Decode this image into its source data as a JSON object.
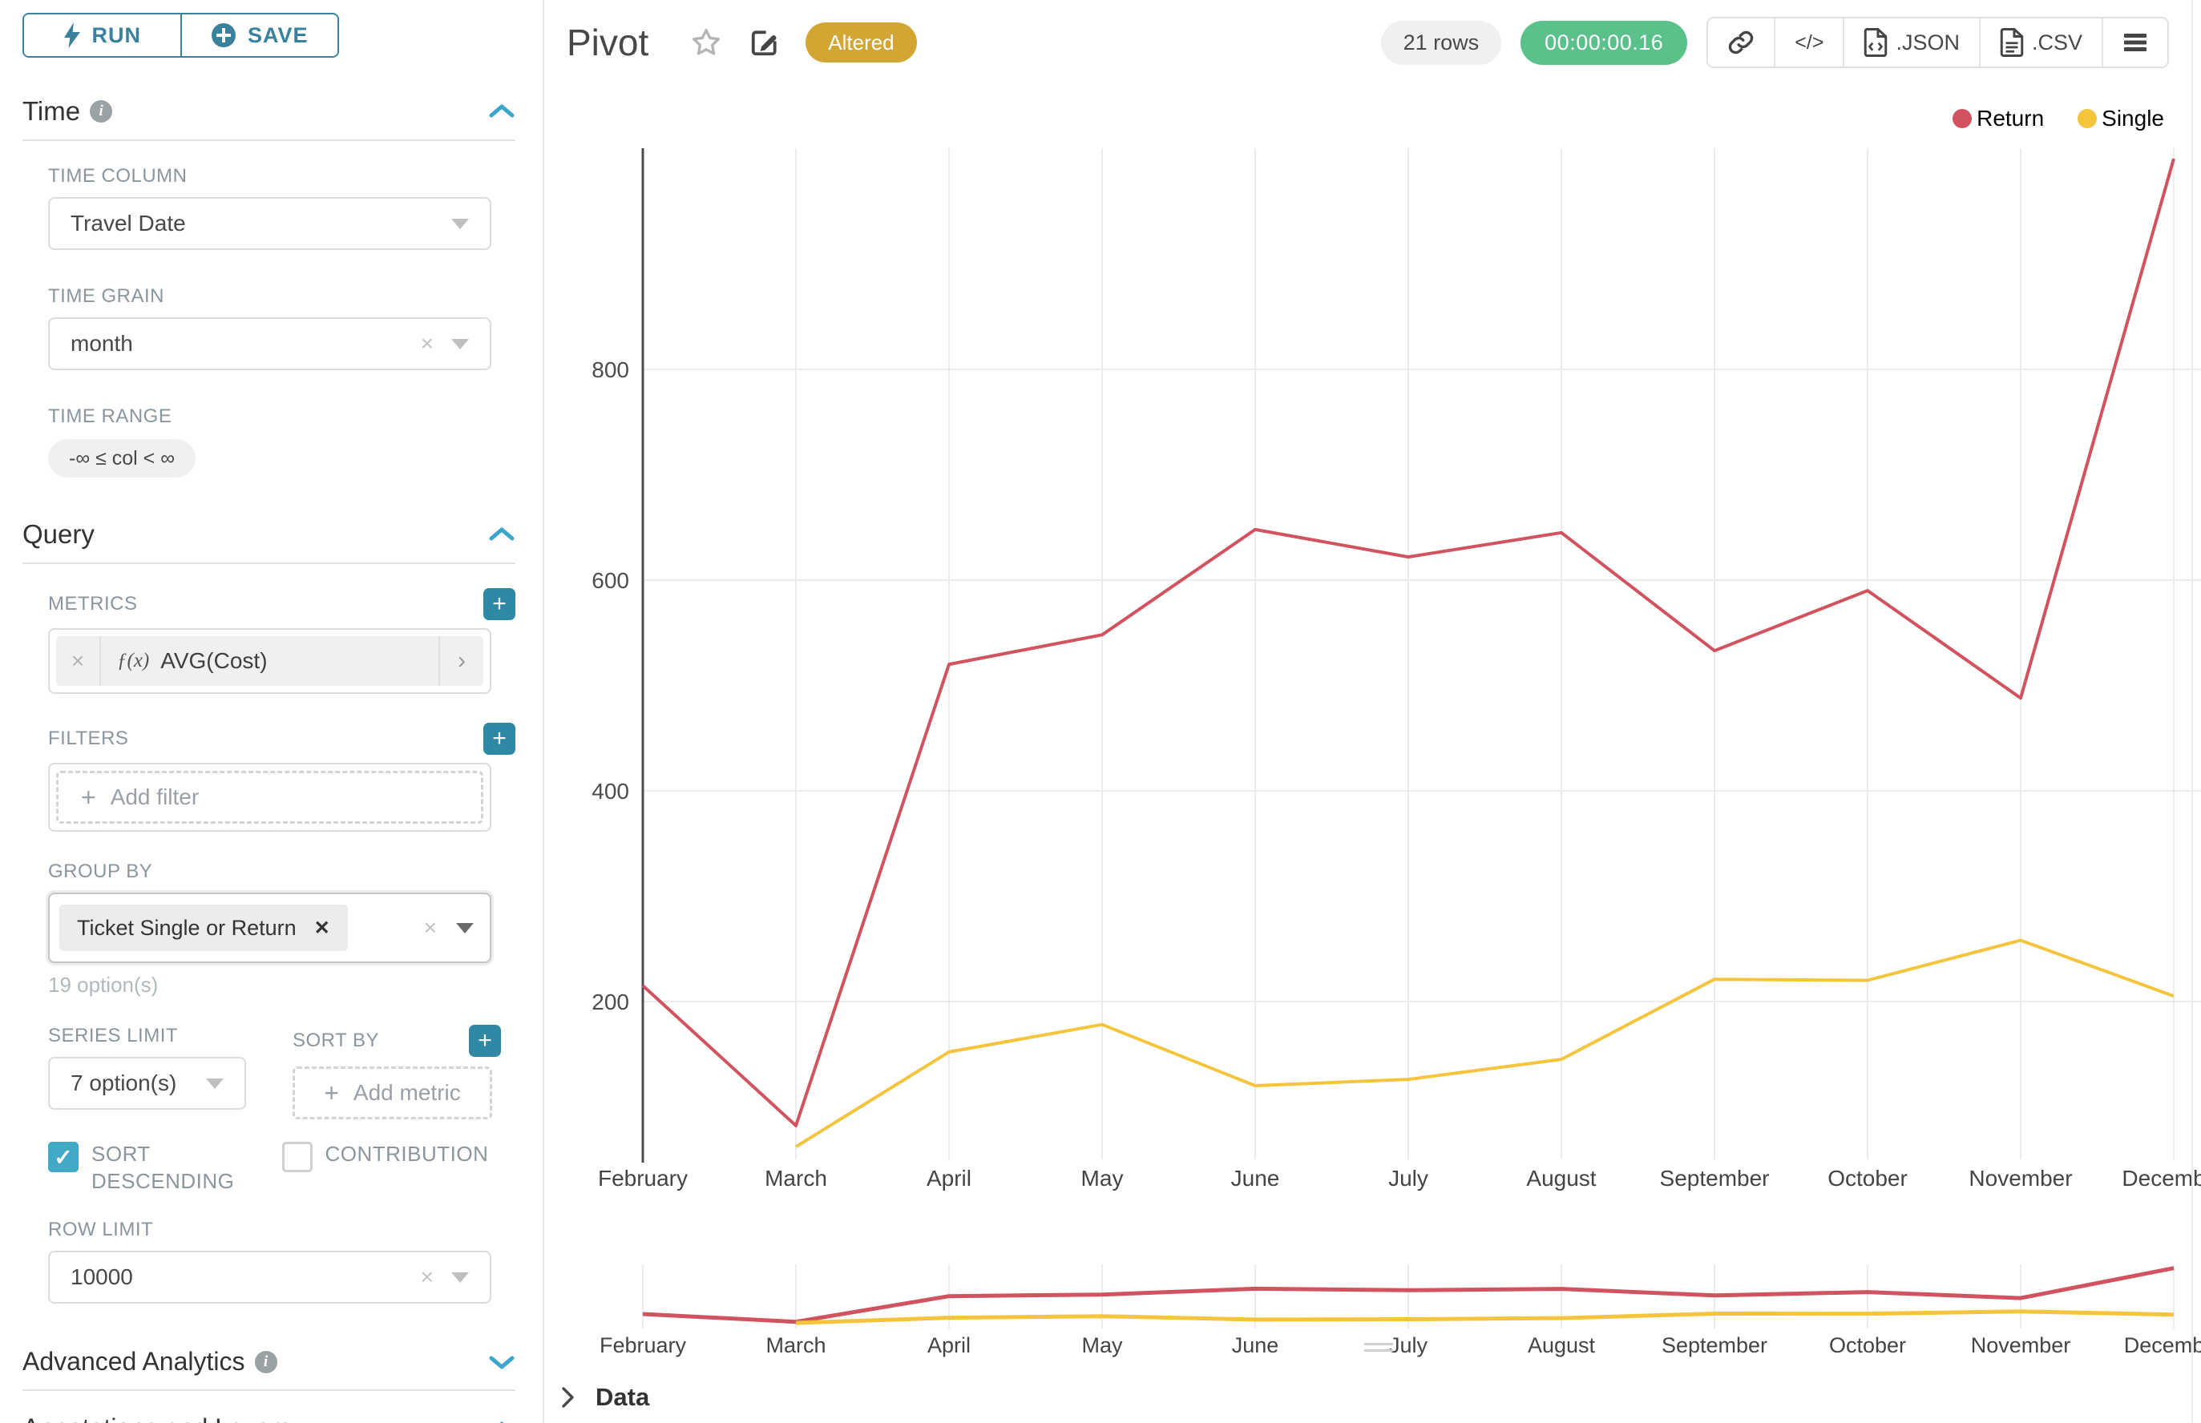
{
  "sidebar": {
    "run_label": "RUN",
    "save_label": "SAVE",
    "time_section": {
      "title": "Time",
      "time_column_label": "TIME COLUMN",
      "time_column_value": "Travel Date",
      "time_grain_label": "TIME GRAIN",
      "time_grain_value": "month",
      "time_range_label": "TIME RANGE",
      "time_range_value": "-∞ ≤ col < ∞"
    },
    "query_section": {
      "title": "Query",
      "metrics_label": "METRICS",
      "metric_fx": "ƒ(x)",
      "metric_value": "AVG(Cost)",
      "filters_label": "FILTERS",
      "add_filter_label": "Add filter",
      "group_by_label": "GROUP BY",
      "group_by_value": "Ticket Single or Return",
      "group_by_hint": "19 option(s)",
      "series_limit_label": "SERIES LIMIT",
      "series_limit_value": "7 option(s)",
      "sort_by_label": "SORT BY",
      "add_metric_label": "Add metric",
      "sort_descending_label": "SORT DESCENDING",
      "contribution_label": "CONTRIBUTION",
      "row_limit_label": "ROW LIMIT",
      "row_limit_value": "10000"
    },
    "advanced_title": "Advanced Analytics",
    "annotations_title": "Annotations and Layers"
  },
  "header": {
    "title": "Pivot",
    "altered_badge": "Altered",
    "rows_badge": "21 rows",
    "timer_badge": "00:00:00.16",
    "json_label": ".JSON",
    "csv_label": ".CSV",
    "code_glyph": "</>"
  },
  "data_panel": {
    "title": "Data"
  },
  "colors": {
    "accent_teal": "#3a819e",
    "plus_button_teal": "#2f89a5",
    "chevron_blue": "#3ba6cc",
    "checkbox_teal": "#41a8c6",
    "timer_green": "#5ac18a",
    "altered_gold": "#d3a634",
    "return_red": "#d0535f",
    "single_yellow": "#f5c43d",
    "gridline": "#ececec",
    "axis_dark": "#4c4c4c"
  },
  "chart_data": {
    "type": "line",
    "title": "Pivot",
    "x": [
      "February",
      "March",
      "April",
      "May",
      "June",
      "July",
      "August",
      "September",
      "October",
      "November",
      "December"
    ],
    "series": [
      {
        "name": "Return",
        "color": "#d0535f",
        "values": [
          215,
          82,
          520,
          548,
          648,
          622,
          645,
          533,
          590,
          488,
          1000
        ]
      },
      {
        "name": "Single",
        "color": "#f5c43d",
        "values": [
          null,
          62,
          152,
          178,
          120,
          126,
          145,
          221,
          220,
          258,
          205
        ]
      }
    ],
    "xlabel": "",
    "ylabel": "",
    "yticks": [
      200,
      400,
      600,
      800
    ],
    "ylim": [
      50,
      1010
    ],
    "grid": true,
    "legend_position": "top-right",
    "has_brush_preview": true
  }
}
